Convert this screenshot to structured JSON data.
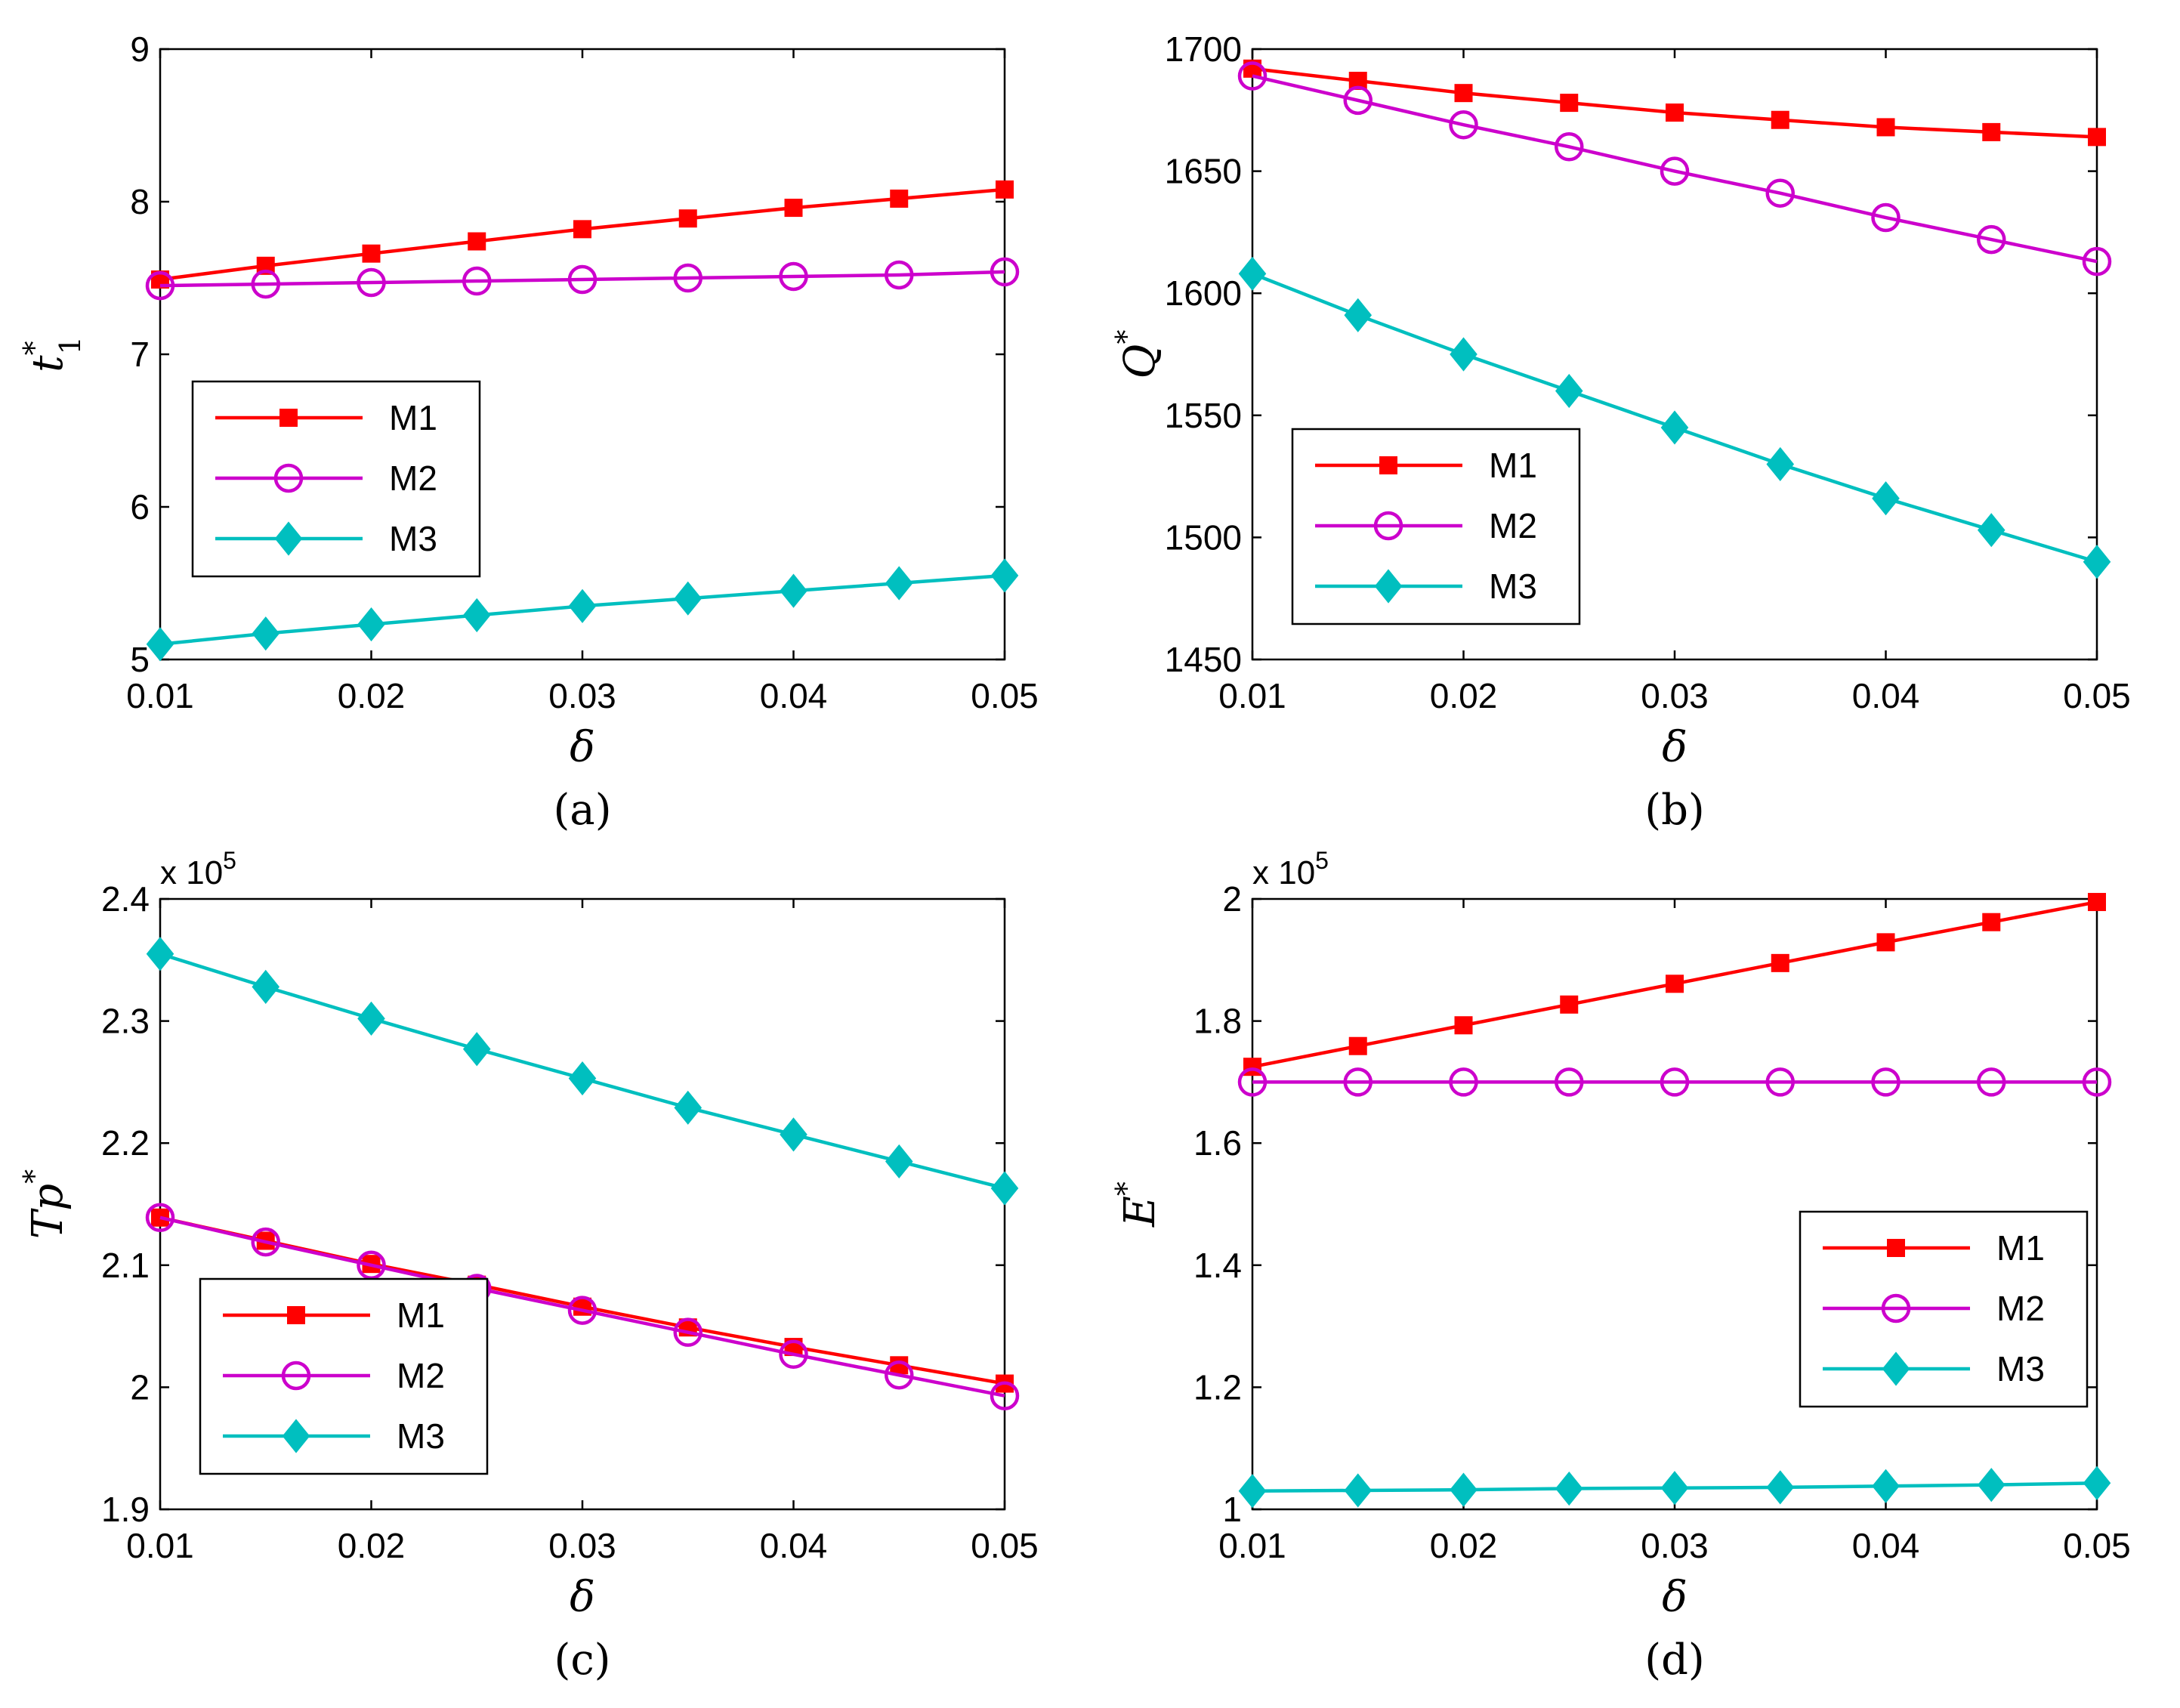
{
  "chart_data": [
    {
      "type": "line",
      "panel": "a",
      "caption": "(a)",
      "ylabel": "t",
      "ylabel_sup": "*",
      "ylabel_sub": "1",
      "xlabel": "δ",
      "exponent": null,
      "x": [
        0.01,
        0.015,
        0.02,
        0.025,
        0.03,
        0.035,
        0.04,
        0.045,
        0.05
      ],
      "xlim": [
        0.01,
        0.05
      ],
      "ylim": [
        5,
        9
      ],
      "xticks": [
        0.01,
        0.02,
        0.03,
        0.04,
        0.05
      ],
      "xtick_labels": [
        "0.01",
        "0.02",
        "0.03",
        "0.04",
        "0.05"
      ],
      "yticks": [
        5,
        6,
        7,
        8,
        9
      ],
      "ytick_labels": [
        "5",
        "6",
        "7",
        "8",
        "9"
      ],
      "legend_position": "center-left",
      "series": [
        {
          "name": "M1",
          "color": "#ff0000",
          "marker": "square",
          "values": [
            7.49,
            7.58,
            7.66,
            7.74,
            7.82,
            7.89,
            7.96,
            8.02,
            8.08
          ]
        },
        {
          "name": "M2",
          "color": "#cc00cc",
          "marker": "circle",
          "values": [
            7.45,
            7.46,
            7.47,
            7.48,
            7.49,
            7.5,
            7.51,
            7.52,
            7.54
          ]
        },
        {
          "name": "M3",
          "color": "#00bfbf",
          "marker": "diamond",
          "values": [
            5.1,
            5.17,
            5.23,
            5.29,
            5.35,
            5.4,
            5.45,
            5.5,
            5.55
          ]
        }
      ]
    },
    {
      "type": "line",
      "panel": "b",
      "caption": "(b)",
      "ylabel": "Q",
      "ylabel_sup": "*",
      "ylabel_sub": "",
      "xlabel": "δ",
      "exponent": null,
      "x": [
        0.01,
        0.015,
        0.02,
        0.025,
        0.03,
        0.035,
        0.04,
        0.045,
        0.05
      ],
      "xlim": [
        0.01,
        0.05
      ],
      "ylim": [
        1450,
        1700
      ],
      "xticks": [
        0.01,
        0.02,
        0.03,
        0.04,
        0.05
      ],
      "xtick_labels": [
        "0.01",
        "0.02",
        "0.03",
        "0.04",
        "0.05"
      ],
      "yticks": [
        1450,
        1500,
        1550,
        1600,
        1650,
        1700
      ],
      "ytick_labels": [
        "1450",
        "1500",
        "1550",
        "1600",
        "1650",
        "1700"
      ],
      "legend_position": "lower-left",
      "series": [
        {
          "name": "M1",
          "color": "#ff0000",
          "marker": "square",
          "values": [
            1692,
            1687,
            1682,
            1678,
            1674,
            1671,
            1668,
            1666,
            1664
          ]
        },
        {
          "name": "M2",
          "color": "#cc00cc",
          "marker": "circle",
          "values": [
            1689,
            1679,
            1669,
            1660,
            1650,
            1641,
            1631,
            1622,
            1613
          ]
        },
        {
          "name": "M3",
          "color": "#00bfbf",
          "marker": "diamond",
          "values": [
            1608,
            1591,
            1575,
            1560,
            1545,
            1530,
            1516,
            1503,
            1490
          ]
        }
      ]
    },
    {
      "type": "line",
      "panel": "c",
      "caption": "(c)",
      "ylabel": "Tp",
      "ylabel_sup": "*",
      "ylabel_sub": "",
      "xlabel": "δ",
      "exponent": {
        "base": "x 10",
        "power": "5"
      },
      "x": [
        0.01,
        0.015,
        0.02,
        0.025,
        0.03,
        0.035,
        0.04,
        0.045,
        0.05
      ],
      "xlim": [
        0.01,
        0.05
      ],
      "ylim": [
        1.9,
        2.4
      ],
      "xticks": [
        0.01,
        0.02,
        0.03,
        0.04,
        0.05
      ],
      "xtick_labels": [
        "0.01",
        "0.02",
        "0.03",
        "0.04",
        "0.05"
      ],
      "yticks": [
        1.9,
        2.0,
        2.1,
        2.2,
        2.3,
        2.4
      ],
      "ytick_labels": [
        "1.9",
        "2",
        "2.1",
        "2.2",
        "2.3",
        "2.4"
      ],
      "legend_position": "lower-left",
      "series": [
        {
          "name": "M1",
          "color": "#ff0000",
          "marker": "square",
          "values": [
            2.139,
            2.12,
            2.101,
            2.084,
            2.066,
            2.049,
            2.033,
            2.018,
            2.003
          ]
        },
        {
          "name": "M2",
          "color": "#cc00cc",
          "marker": "circle",
          "values": [
            2.139,
            2.119,
            2.1,
            2.081,
            2.063,
            2.045,
            2.027,
            2.01,
            1.993
          ]
        },
        {
          "name": "M3",
          "color": "#00bfbf",
          "marker": "diamond",
          "values": [
            2.355,
            2.328,
            2.302,
            2.277,
            2.253,
            2.229,
            2.207,
            2.185,
            2.163
          ]
        }
      ]
    },
    {
      "type": "line",
      "panel": "d",
      "caption": "(d)",
      "ylabel": "E",
      "ylabel_sup": "*",
      "ylabel_sub": "",
      "xlabel": "δ",
      "exponent": {
        "base": "x 10",
        "power": "5"
      },
      "x": [
        0.01,
        0.015,
        0.02,
        0.025,
        0.03,
        0.035,
        0.04,
        0.045,
        0.05
      ],
      "xlim": [
        0.01,
        0.05
      ],
      "ylim": [
        1.0,
        2.0
      ],
      "xticks": [
        0.01,
        0.02,
        0.03,
        0.04,
        0.05
      ],
      "xtick_labels": [
        "0.01",
        "0.02",
        "0.03",
        "0.04",
        "0.05"
      ],
      "yticks": [
        1.0,
        1.2,
        1.4,
        1.6,
        1.8,
        2.0
      ],
      "ytick_labels": [
        "1",
        "1.2",
        "1.4",
        "1.6",
        "1.8",
        "2"
      ],
      "legend_position": "lower-right",
      "series": [
        {
          "name": "M1",
          "color": "#ff0000",
          "marker": "square",
          "values": [
            1.725,
            1.759,
            1.793,
            1.827,
            1.861,
            1.895,
            1.929,
            1.962,
            1.995
          ]
        },
        {
          "name": "M2",
          "color": "#cc00cc",
          "marker": "circle",
          "values": [
            1.7,
            1.7,
            1.7,
            1.7,
            1.7,
            1.7,
            1.7,
            1.7,
            1.7
          ]
        },
        {
          "name": "M3",
          "color": "#00bfbf",
          "marker": "diamond",
          "values": [
            1.03,
            1.031,
            1.032,
            1.034,
            1.035,
            1.036,
            1.038,
            1.04,
            1.043
          ]
        }
      ]
    }
  ]
}
